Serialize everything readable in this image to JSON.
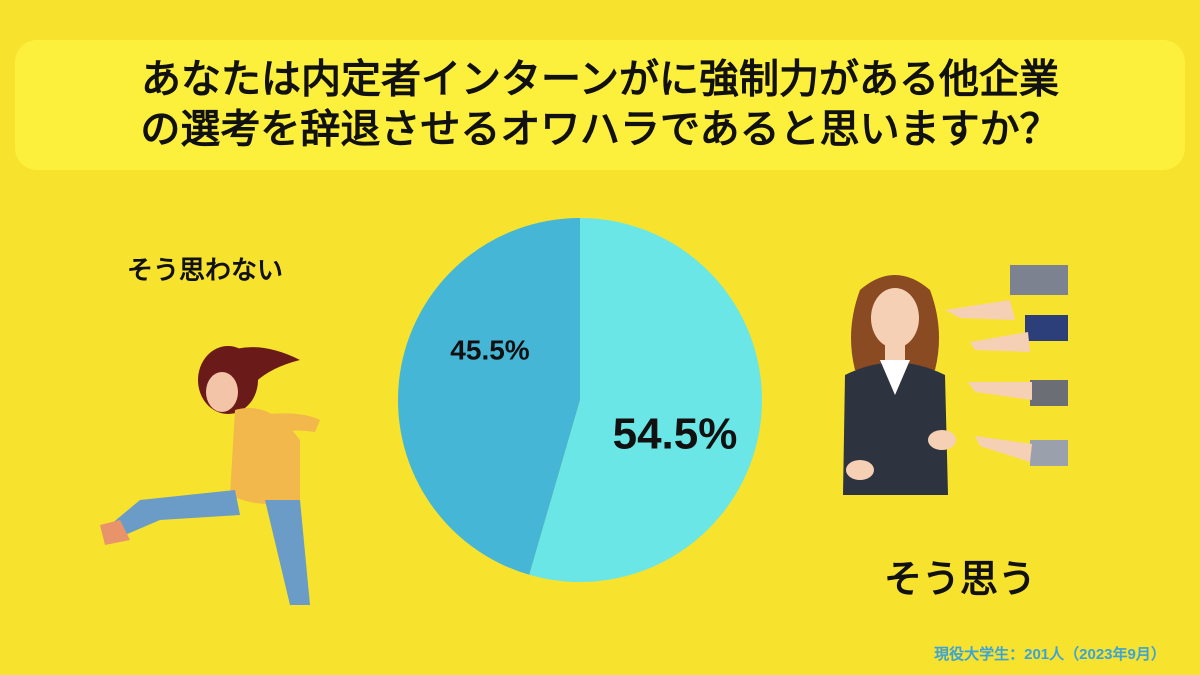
{
  "chart_data": {
    "type": "pie",
    "title": [
      "あなたは内定者インターンがに強制力がある他企業",
      "の選考を辞退させるオワハラであると思いますか？"
    ],
    "categories": [
      "そう思う",
      "そう思わない"
    ],
    "values": [
      54.5,
      45.5
    ],
    "value_labels": [
      "54.5%",
      "45.5%"
    ],
    "colors": [
      "#6ae6e6",
      "#45b6d6"
    ],
    "note": "現役大学生：201人（2023年9月）"
  }
}
